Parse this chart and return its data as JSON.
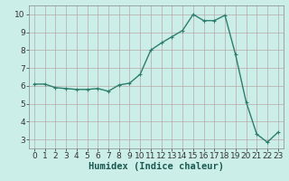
{
  "x": [
    0,
    1,
    2,
    3,
    4,
    5,
    6,
    7,
    8,
    9,
    10,
    11,
    12,
    13,
    14,
    15,
    16,
    17,
    18,
    19,
    20,
    21,
    22,
    23
  ],
  "y": [
    6.1,
    6.1,
    5.9,
    5.85,
    5.8,
    5.8,
    5.85,
    5.7,
    6.05,
    6.15,
    6.65,
    8.0,
    8.4,
    8.75,
    9.1,
    10.0,
    9.65,
    9.65,
    9.95,
    7.75,
    5.1,
    3.3,
    2.85,
    3.4
  ],
  "line_color": "#2d7d6d",
  "bg_color": "#cceee8",
  "grid_color_minor": "#c0d8d4",
  "grid_color_major": "#b0c8c0",
  "xlabel": "Humidex (Indice chaleur)",
  "ylim": [
    2.5,
    10.5
  ],
  "xlim": [
    -0.5,
    23.5
  ],
  "yticks": [
    3,
    4,
    5,
    6,
    7,
    8,
    9,
    10
  ],
  "xticks": [
    0,
    1,
    2,
    3,
    4,
    5,
    6,
    7,
    8,
    9,
    10,
    11,
    12,
    13,
    14,
    15,
    16,
    17,
    18,
    19,
    20,
    21,
    22,
    23
  ],
  "marker": "+",
  "markersize": 3.5,
  "linewidth": 1.0,
  "xlabel_fontsize": 7.5,
  "tick_fontsize": 6.5
}
